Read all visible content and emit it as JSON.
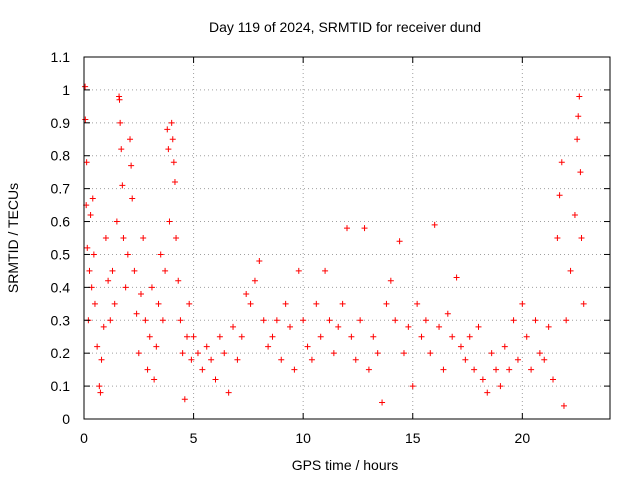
{
  "chart_data": {
    "type": "scatter",
    "title": "Day 119 of 2024, SRMTID for receiver dund",
    "xlabel": "GPS time / hours",
    "ylabel": "SRMTID / TECUs",
    "xlim": [
      0,
      24
    ],
    "ylim": [
      0,
      1.1
    ],
    "xticks": [
      0,
      5,
      10,
      15,
      20
    ],
    "yticks": [
      0,
      0.1,
      0.2,
      0.3,
      0.4,
      0.5,
      0.6,
      0.7,
      0.8,
      0.9,
      1,
      1.1
    ],
    "xtick_labels": [
      "0",
      "5",
      "10",
      "15",
      "20"
    ],
    "ytick_labels": [
      "0",
      "0.1",
      "0.2",
      "0.3",
      "0.4",
      "0.5",
      "0.6",
      "0.7",
      "0.8",
      "0.9",
      "1",
      "1.1"
    ],
    "grid": true,
    "marker": "+",
    "color": "#ff0000",
    "series": [
      {
        "name": "SRMTID",
        "points": [
          [
            0.05,
            1.01
          ],
          [
            0.06,
            0.91
          ],
          [
            0.12,
            0.78
          ],
          [
            0.1,
            0.65
          ],
          [
            0.15,
            0.52
          ],
          [
            0.2,
            0.3
          ],
          [
            0.25,
            0.45
          ],
          [
            0.3,
            0.62
          ],
          [
            0.35,
            0.4
          ],
          [
            0.4,
            0.67
          ],
          [
            0.45,
            0.5
          ],
          [
            0.5,
            0.35
          ],
          [
            0.6,
            0.22
          ],
          [
            0.7,
            0.1
          ],
          [
            0.75,
            0.08
          ],
          [
            0.8,
            0.18
          ],
          [
            0.9,
            0.28
          ],
          [
            1.0,
            0.55
          ],
          [
            1.1,
            0.42
          ],
          [
            1.2,
            0.3
          ],
          [
            1.3,
            0.45
          ],
          [
            1.4,
            0.35
          ],
          [
            1.5,
            0.6
          ],
          [
            1.6,
            0.98
          ],
          [
            1.62,
            0.97
          ],
          [
            1.65,
            0.9
          ],
          [
            1.7,
            0.82
          ],
          [
            1.75,
            0.71
          ],
          [
            1.8,
            0.55
          ],
          [
            1.9,
            0.4
          ],
          [
            2.0,
            0.5
          ],
          [
            2.1,
            0.85
          ],
          [
            2.15,
            0.77
          ],
          [
            2.2,
            0.67
          ],
          [
            2.3,
            0.45
          ],
          [
            2.4,
            0.32
          ],
          [
            2.5,
            0.2
          ],
          [
            2.6,
            0.38
          ],
          [
            2.7,
            0.55
          ],
          [
            2.8,
            0.3
          ],
          [
            2.9,
            0.15
          ],
          [
            3.0,
            0.25
          ],
          [
            3.1,
            0.4
          ],
          [
            3.2,
            0.12
          ],
          [
            3.3,
            0.22
          ],
          [
            3.4,
            0.35
          ],
          [
            3.5,
            0.5
          ],
          [
            3.6,
            0.3
          ],
          [
            3.7,
            0.45
          ],
          [
            3.8,
            0.88
          ],
          [
            3.85,
            0.82
          ],
          [
            3.9,
            0.6
          ],
          [
            4.0,
            0.9
          ],
          [
            4.05,
            0.85
          ],
          [
            4.1,
            0.78
          ],
          [
            4.15,
            0.72
          ],
          [
            4.2,
            0.55
          ],
          [
            4.3,
            0.42
          ],
          [
            4.4,
            0.3
          ],
          [
            4.5,
            0.2
          ],
          [
            4.6,
            0.06
          ],
          [
            4.7,
            0.25
          ],
          [
            4.8,
            0.35
          ],
          [
            4.9,
            0.18
          ],
          [
            5.0,
            0.25
          ],
          [
            5.2,
            0.2
          ],
          [
            5.4,
            0.15
          ],
          [
            5.6,
            0.22
          ],
          [
            5.8,
            0.18
          ],
          [
            6.0,
            0.12
          ],
          [
            6.2,
            0.25
          ],
          [
            6.4,
            0.2
          ],
          [
            6.6,
            0.08
          ],
          [
            6.8,
            0.28
          ],
          [
            7.0,
            0.18
          ],
          [
            7.2,
            0.25
          ],
          [
            7.4,
            0.38
          ],
          [
            7.6,
            0.35
          ],
          [
            7.8,
            0.42
          ],
          [
            8.0,
            0.48
          ],
          [
            8.2,
            0.3
          ],
          [
            8.4,
            0.22
          ],
          [
            8.6,
            0.25
          ],
          [
            8.8,
            0.3
          ],
          [
            9.0,
            0.18
          ],
          [
            9.2,
            0.35
          ],
          [
            9.4,
            0.28
          ],
          [
            9.6,
            0.15
          ],
          [
            9.8,
            0.45
          ],
          [
            10.0,
            0.3
          ],
          [
            10.2,
            0.22
          ],
          [
            10.4,
            0.18
          ],
          [
            10.6,
            0.35
          ],
          [
            10.8,
            0.25
          ],
          [
            11.0,
            0.45
          ],
          [
            11.2,
            0.3
          ],
          [
            11.4,
            0.2
          ],
          [
            11.6,
            0.28
          ],
          [
            11.8,
            0.35
          ],
          [
            12.0,
            0.58
          ],
          [
            12.2,
            0.25
          ],
          [
            12.4,
            0.18
          ],
          [
            12.6,
            0.3
          ],
          [
            12.8,
            0.58
          ],
          [
            13.0,
            0.15
          ],
          [
            13.2,
            0.25
          ],
          [
            13.4,
            0.2
          ],
          [
            13.6,
            0.05
          ],
          [
            13.8,
            0.35
          ],
          [
            14.0,
            0.42
          ],
          [
            14.2,
            0.3
          ],
          [
            14.4,
            0.54
          ],
          [
            14.6,
            0.2
          ],
          [
            14.8,
            0.28
          ],
          [
            15.0,
            0.1
          ],
          [
            15.2,
            0.35
          ],
          [
            15.4,
            0.25
          ],
          [
            15.6,
            0.3
          ],
          [
            15.8,
            0.2
          ],
          [
            16.0,
            0.59
          ],
          [
            16.2,
            0.28
          ],
          [
            16.4,
            0.15
          ],
          [
            16.6,
            0.32
          ],
          [
            16.8,
            0.25
          ],
          [
            17.0,
            0.43
          ],
          [
            17.2,
            0.22
          ],
          [
            17.4,
            0.18
          ],
          [
            17.6,
            0.25
          ],
          [
            17.8,
            0.15
          ],
          [
            18.0,
            0.28
          ],
          [
            18.2,
            0.12
          ],
          [
            18.4,
            0.08
          ],
          [
            18.6,
            0.2
          ],
          [
            18.8,
            0.15
          ],
          [
            19.0,
            0.1
          ],
          [
            19.2,
            0.22
          ],
          [
            19.4,
            0.15
          ],
          [
            19.6,
            0.3
          ],
          [
            19.8,
            0.18
          ],
          [
            20.0,
            0.35
          ],
          [
            20.2,
            0.25
          ],
          [
            20.4,
            0.15
          ],
          [
            20.6,
            0.3
          ],
          [
            20.8,
            0.2
          ],
          [
            21.0,
            0.18
          ],
          [
            21.2,
            0.28
          ],
          [
            21.4,
            0.12
          ],
          [
            21.6,
            0.55
          ],
          [
            21.7,
            0.68
          ],
          [
            21.8,
            0.78
          ],
          [
            21.9,
            0.04
          ],
          [
            22.0,
            0.3
          ],
          [
            22.2,
            0.45
          ],
          [
            22.4,
            0.62
          ],
          [
            22.5,
            0.85
          ],
          [
            22.55,
            0.92
          ],
          [
            22.6,
            0.98
          ],
          [
            22.65,
            0.75
          ],
          [
            22.7,
            0.55
          ],
          [
            22.8,
            0.35
          ]
        ]
      }
    ]
  }
}
